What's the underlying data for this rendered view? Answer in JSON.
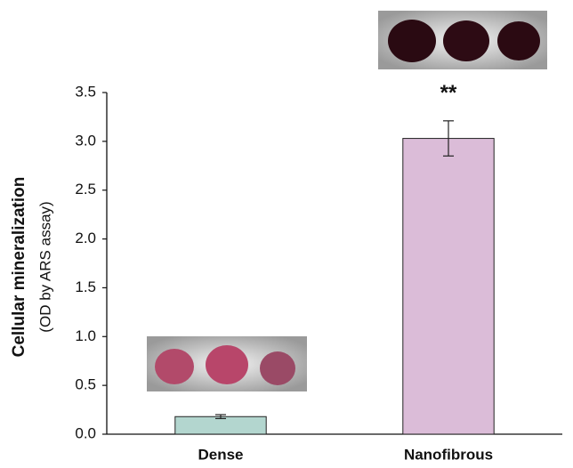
{
  "chart_data": {
    "type": "bar",
    "ylabel": "Cellular mineralization",
    "ylabel_sub": "(OD by ARS assay)",
    "annotation": "**",
    "categories": [
      "Dense",
      "Nanofibrous"
    ],
    "values": [
      0.18,
      3.03
    ],
    "errors": [
      0.02,
      0.18
    ],
    "colors": [
      "#b3d6cf",
      "#dbbcd8"
    ],
    "ylim": [
      0,
      3.5
    ],
    "yticks": [
      {
        "value": 0,
        "label": "0.0"
      },
      0.5,
      {
        "value": 1,
        "label": "1.0"
      },
      1.5,
      {
        "value": 2,
        "label": "2.0"
      },
      2.5,
      {
        "value": 3,
        "label": "3.0"
      },
      3.5
    ]
  }
}
